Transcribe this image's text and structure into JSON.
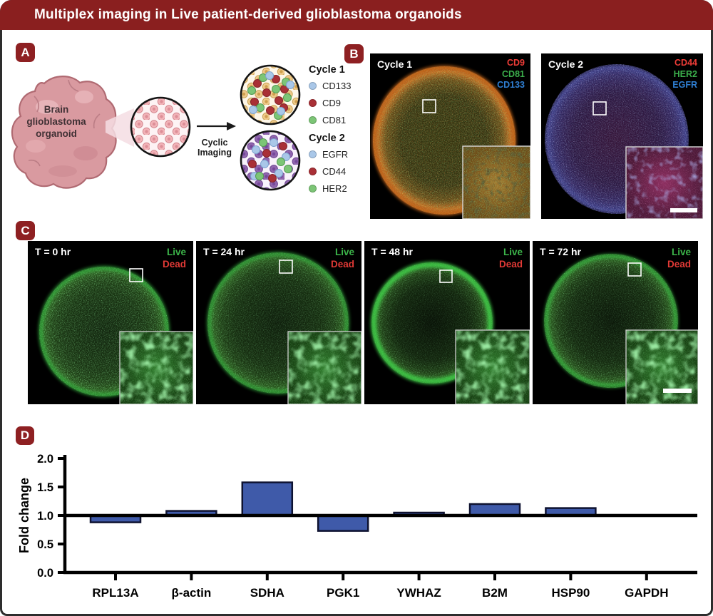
{
  "header": {
    "title": "Multiplex imaging in Live patient-derived glioblastoma organoids"
  },
  "panel_a": {
    "label": "A",
    "organoid_caption": "Brain glioblastoma organoid",
    "arrow_label": "Cyclic Imaging",
    "legend_cycle1": {
      "title": "Cycle 1",
      "items": [
        {
          "label": "CD133",
          "color": "#a9c7e8"
        },
        {
          "label": "CD9",
          "color": "#a93036"
        },
        {
          "label": "CD81",
          "color": "#7cc576"
        }
      ]
    },
    "legend_cycle2": {
      "title": "Cycle 2",
      "items": [
        {
          "label": "EGFR",
          "color": "#a9c7e8"
        },
        {
          "label": "CD44",
          "color": "#a93036"
        },
        {
          "label": "HER2",
          "color": "#7cc576"
        }
      ]
    }
  },
  "panel_b": {
    "label": "B",
    "image1": {
      "caption": "Cycle 1",
      "markers": [
        {
          "label": "CD9",
          "color": "#f03d38"
        },
        {
          "label": "CD81",
          "color": "#3bae4b"
        },
        {
          "label": "CD133",
          "color": "#2f7fd3"
        }
      ]
    },
    "image2": {
      "caption": "Cycle 2",
      "markers": [
        {
          "label": "CD44",
          "color": "#f03d38"
        },
        {
          "label": "HER2",
          "color": "#3bae4b"
        },
        {
          "label": "EGFR",
          "color": "#2f7fd3"
        }
      ]
    }
  },
  "panel_c": {
    "label": "C",
    "timepoints": [
      "T = 0 hr",
      "T = 24 hr",
      "T = 48 hr",
      "T = 72 hr"
    ],
    "live_label": "Live",
    "live_color": "#3cb54a",
    "dead_label": "Dead",
    "dead_color": "#e23a36"
  },
  "panel_d": {
    "label": "D"
  },
  "chart_data": {
    "type": "bar",
    "title": "",
    "categories": [
      "RPL13A",
      "β-actin",
      "SDHA",
      "PGK1",
      "YWHAZ",
      "B2M",
      "HSP90",
      "GAPDH"
    ],
    "values": [
      0.88,
      1.08,
      1.58,
      0.73,
      1.05,
      1.2,
      1.13,
      1.0
    ],
    "baseline": 1.0,
    "xlabel": "",
    "ylabel": "Fold change",
    "yticks": [
      0.0,
      0.5,
      1.0,
      1.5,
      2.0
    ],
    "ylim": [
      0.0,
      2.0
    ],
    "grid": false,
    "legend_position": "none",
    "bar_color": "#3f5aa9",
    "bar_edge_color": "#0e1230"
  },
  "colors": {
    "header_bar": "#8a1f1f",
    "figure_border": "#2d2d2d"
  }
}
